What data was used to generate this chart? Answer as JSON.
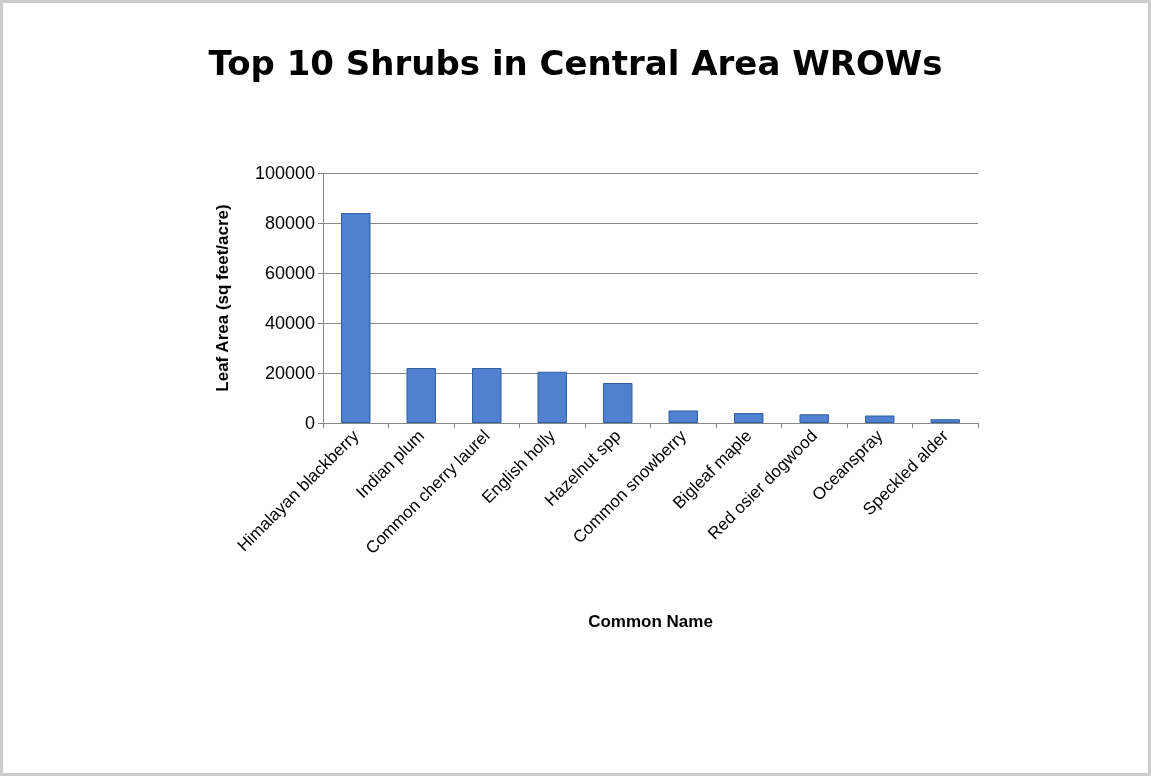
{
  "chart_data": {
    "type": "bar",
    "title": "Top 10 Shrubs in Central Area WROWs",
    "xlabel": "Common Name",
    "ylabel": "Leaf Area (sq feet/acre)",
    "categories": [
      "Himalayan blackberry",
      "Indian plum",
      "Common cherry laurel",
      "English holly",
      "Hazelnut spp",
      "Common snowberry",
      "Bigleaf maple",
      "Red osier dogwood",
      "Oceanspray",
      "Speckled alder"
    ],
    "values": [
      84000,
      22000,
      22000,
      20500,
      16000,
      5000,
      4000,
      3500,
      3000,
      1500
    ],
    "color": "#4f81d0",
    "ylim": [
      0,
      100000
    ],
    "yticks": [
      0,
      20000,
      40000,
      60000,
      80000,
      100000
    ],
    "grid": "y"
  }
}
